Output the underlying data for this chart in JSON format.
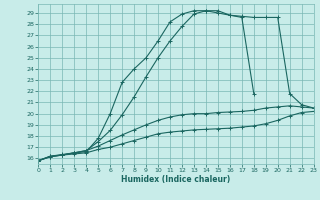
{
  "xlabel": "Humidex (Indice chaleur)",
  "bg_color": "#c8ece9",
  "grid_color": "#7ab8b4",
  "line_color": "#1a6660",
  "xlim": [
    0,
    23
  ],
  "ylim": [
    15.5,
    29.8
  ],
  "yticks": [
    16,
    17,
    18,
    19,
    20,
    21,
    22,
    23,
    24,
    25,
    26,
    27,
    28,
    29
  ],
  "xticks": [
    0,
    1,
    2,
    3,
    4,
    5,
    6,
    7,
    8,
    9,
    10,
    11,
    12,
    13,
    14,
    15,
    16,
    17,
    18,
    19,
    20,
    21,
    22,
    23
  ],
  "curve1_x": [
    0,
    1,
    2,
    3,
    4,
    5,
    6,
    7,
    8,
    9,
    10,
    11,
    12,
    13,
    14,
    15,
    16,
    17,
    18,
    19,
    20,
    21,
    22,
    23
  ],
  "curve1_y": [
    15.8,
    16.2,
    16.3,
    16.4,
    16.5,
    16.8,
    17.0,
    17.3,
    17.6,
    17.9,
    18.2,
    18.35,
    18.45,
    18.55,
    18.6,
    18.65,
    18.7,
    18.8,
    18.9,
    19.1,
    19.4,
    19.8,
    20.1,
    20.2
  ],
  "curve2_x": [
    0,
    1,
    2,
    3,
    4,
    5,
    6,
    7,
    8,
    9,
    10,
    11,
    12,
    13,
    14,
    15,
    16,
    17,
    18,
    19,
    20,
    21,
    22,
    23
  ],
  "curve2_y": [
    15.8,
    16.2,
    16.35,
    16.5,
    16.7,
    17.1,
    17.6,
    18.1,
    18.55,
    19.0,
    19.4,
    19.7,
    19.9,
    20.0,
    20.0,
    20.1,
    20.15,
    20.2,
    20.3,
    20.5,
    20.6,
    20.7,
    20.6,
    20.5
  ],
  "curve3_x": [
    0,
    1,
    2,
    3,
    4,
    5,
    6,
    7,
    8,
    9,
    10,
    11,
    12,
    13,
    14,
    15,
    16,
    17,
    18
  ],
  "curve3_y": [
    15.8,
    16.15,
    16.3,
    16.5,
    16.6,
    17.8,
    20.0,
    22.8,
    24.0,
    25.0,
    26.5,
    28.2,
    28.9,
    29.2,
    29.2,
    29.0,
    28.8,
    28.6,
    21.8
  ],
  "curve4_x": [
    0,
    1,
    2,
    3,
    4,
    5,
    6,
    7,
    8,
    9,
    10,
    11,
    12,
    13,
    14,
    15,
    16,
    17,
    18,
    19,
    20,
    21,
    22,
    23
  ],
  "curve4_y": [
    15.8,
    16.15,
    16.3,
    16.5,
    16.7,
    17.5,
    18.5,
    19.9,
    21.5,
    23.3,
    25.0,
    26.5,
    27.8,
    28.9,
    29.2,
    29.2,
    28.8,
    28.7,
    28.6,
    28.6,
    28.6,
    21.8,
    20.8,
    20.5
  ]
}
